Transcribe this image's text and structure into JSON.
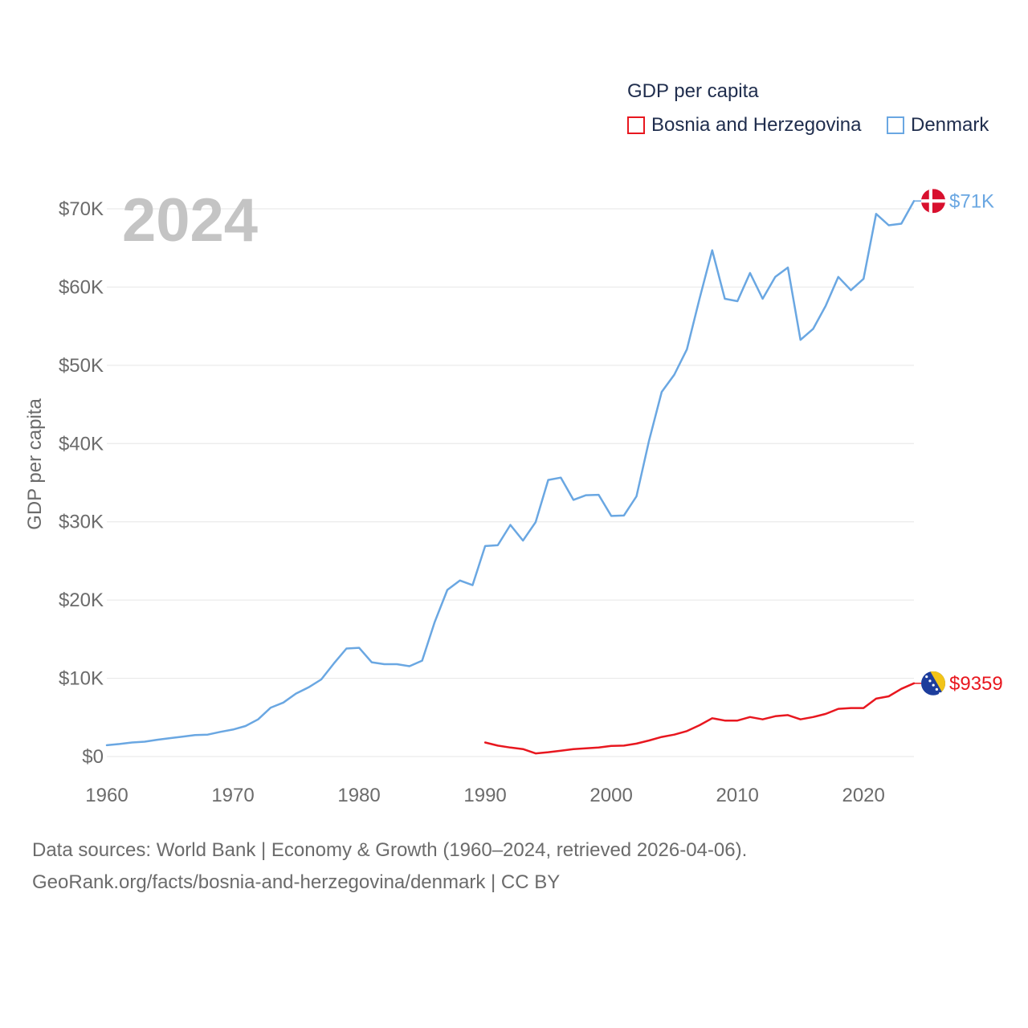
{
  "chart_data": {
    "type": "line",
    "year_label": "2024",
    "ylabel": "GDP per capita",
    "xlim": [
      1960,
      2024
    ],
    "ylim": [
      0,
      72000
    ],
    "x_ticks": [
      1960,
      1970,
      1980,
      1990,
      2000,
      2010,
      2020
    ],
    "x_tick_labels": [
      "1960",
      "1970",
      "1980",
      "1990",
      "2000",
      "2010",
      "2020"
    ],
    "y_ticks": [
      0,
      10000,
      20000,
      30000,
      40000,
      50000,
      60000,
      70000
    ],
    "y_tick_labels": [
      "$0",
      "$10K",
      "$20K",
      "$30K",
      "$40K",
      "$50K",
      "$60K",
      "$70K"
    ],
    "grid": true,
    "legend": {
      "title": "GDP per capita",
      "placement": "top-right"
    },
    "series": [
      {
        "name": "Bosnia and Herzegovina",
        "color": "#e8171f",
        "end_label": "$9359",
        "flag": "bosnia-flag",
        "x": [
          1990,
          1991,
          1992,
          1993,
          1994,
          1995,
          1996,
          1997,
          1998,
          1999,
          2000,
          2001,
          2002,
          2003,
          2004,
          2005,
          2006,
          2007,
          2008,
          2009,
          2010,
          2011,
          2012,
          2013,
          2014,
          2015,
          2016,
          2017,
          2018,
          2019,
          2020,
          2021,
          2022,
          2023,
          2024
        ],
        "values": [
          1800,
          1400,
          1150,
          950,
          400,
          550,
          750,
          950,
          1050,
          1150,
          1350,
          1400,
          1650,
          2050,
          2500,
          2800,
          3250,
          4000,
          4900,
          4600,
          4600,
          5050,
          4750,
          5150,
          5300,
          4750,
          5050,
          5450,
          6100,
          6200,
          6200,
          7400,
          7700,
          8650,
          9359
        ]
      },
      {
        "name": "Denmark",
        "color": "#6aa7e2",
        "end_label": "$71K",
        "flag": "denmark-flag",
        "x": [
          1960,
          1961,
          1962,
          1963,
          1964,
          1965,
          1966,
          1967,
          1968,
          1969,
          1970,
          1971,
          1972,
          1973,
          1974,
          1975,
          1976,
          1977,
          1978,
          1979,
          1980,
          1981,
          1982,
          1983,
          1984,
          1985,
          1986,
          1987,
          1988,
          1989,
          1990,
          1991,
          1992,
          1993,
          1994,
          1995,
          1996,
          1997,
          1998,
          1999,
          2000,
          2001,
          2002,
          2003,
          2004,
          2005,
          2006,
          2007,
          2008,
          2009,
          2010,
          2011,
          2012,
          2013,
          2014,
          2015,
          2016,
          2017,
          2018,
          2019,
          2020,
          2021,
          2022,
          2023,
          2024
        ],
        "values": [
          1450,
          1600,
          1800,
          1900,
          2150,
          2350,
          2550,
          2750,
          2800,
          3150,
          3450,
          3900,
          4750,
          6250,
          6900,
          8050,
          8850,
          9850,
          11900,
          13800,
          13900,
          12050,
          11800,
          11800,
          11550,
          12250,
          17200,
          21300,
          22500,
          21900,
          26900,
          27000,
          29600,
          27600,
          29950,
          35350,
          35650,
          32800,
          33400,
          33450,
          30750,
          30800,
          33250,
          40400,
          46600,
          48800,
          52050,
          58500,
          64700,
          58500,
          58200,
          61800,
          58500,
          61300,
          62500,
          53250,
          54650,
          57600,
          61300,
          59600,
          61050,
          69350,
          67900,
          68100,
          71000
        ]
      }
    ]
  },
  "footer": {
    "line1": "Data sources: World Bank | Economy & Growth (1960–2024, retrieved 2026-04-06).",
    "line2": "GeoRank.org/facts/bosnia-and-herzegovina/denmark | CC BY"
  }
}
